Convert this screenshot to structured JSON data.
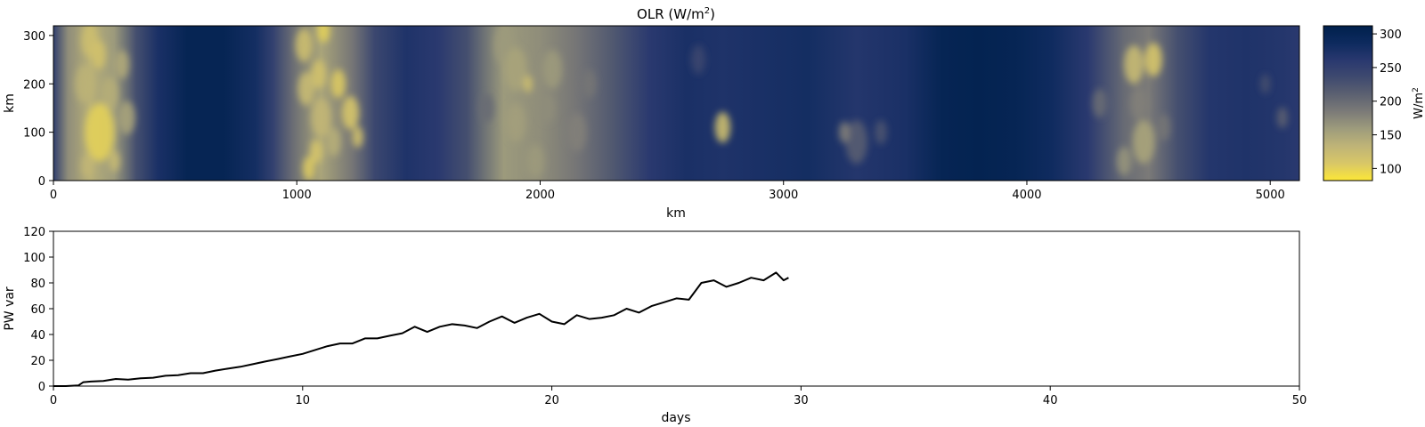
{
  "chart_data": [
    {
      "type": "heatmap",
      "title": "OLR (W/m²)",
      "title_main": "OLR (W/m",
      "title_sup": "2",
      "title_end": ")",
      "xlabel": "km",
      "ylabel": "km",
      "xlim": [
        0,
        5120
      ],
      "ylim": [
        0,
        320
      ],
      "xticks": [
        0,
        1000,
        2000,
        3000,
        4000,
        5000
      ],
      "yticks": [
        0,
        100,
        200,
        300
      ],
      "colormap": "cividis (reversed)",
      "colorbar": {
        "label_main": "W/m",
        "label_sup": "2",
        "ticks": [
          100,
          150,
          200,
          250,
          300
        ],
        "range": [
          82,
          312
        ],
        "colors": [
          "#fde737",
          "#d8c767",
          "#bfb477",
          "#9e9c7c",
          "#7c7b78",
          "#5c6171",
          "#3f4a6f",
          "#29386f",
          "#0d2a5e",
          "#00204c"
        ]
      },
      "background_value": 285,
      "bands": [
        {
          "x": 0,
          "v": 250
        },
        {
          "x": 60,
          "v": 170
        },
        {
          "x": 150,
          "v": 140
        },
        {
          "x": 250,
          "v": 160
        },
        {
          "x": 340,
          "v": 230
        },
        {
          "x": 430,
          "v": 275
        },
        {
          "x": 550,
          "v": 300
        },
        {
          "x": 700,
          "v": 300
        },
        {
          "x": 830,
          "v": 280
        },
        {
          "x": 900,
          "v": 250
        },
        {
          "x": 980,
          "v": 200
        },
        {
          "x": 1100,
          "v": 150
        },
        {
          "x": 1230,
          "v": 190
        },
        {
          "x": 1320,
          "v": 240
        },
        {
          "x": 1450,
          "v": 270
        },
        {
          "x": 1580,
          "v": 260
        },
        {
          "x": 1700,
          "v": 230
        },
        {
          "x": 1850,
          "v": 160
        },
        {
          "x": 2000,
          "v": 170
        },
        {
          "x": 2150,
          "v": 190
        },
        {
          "x": 2300,
          "v": 220
        },
        {
          "x": 2450,
          "v": 260
        },
        {
          "x": 2600,
          "v": 275
        },
        {
          "x": 2750,
          "v": 270
        },
        {
          "x": 2900,
          "v": 275
        },
        {
          "x": 3100,
          "v": 280
        },
        {
          "x": 3300,
          "v": 265
        },
        {
          "x": 3500,
          "v": 275
        },
        {
          "x": 3650,
          "v": 300
        },
        {
          "x": 3800,
          "v": 305
        },
        {
          "x": 3950,
          "v": 300
        },
        {
          "x": 4100,
          "v": 285
        },
        {
          "x": 4250,
          "v": 260
        },
        {
          "x": 4400,
          "v": 200
        },
        {
          "x": 4500,
          "v": 185
        },
        {
          "x": 4620,
          "v": 230
        },
        {
          "x": 4750,
          "v": 265
        },
        {
          "x": 4900,
          "v": 270
        },
        {
          "x": 5050,
          "v": 265
        },
        {
          "x": 5120,
          "v": 260
        }
      ],
      "cells": [
        {
          "x": 150,
          "y": 290,
          "r": 35,
          "v": 120
        },
        {
          "x": 185,
          "y": 260,
          "r": 30,
          "v": 115
        },
        {
          "x": 130,
          "y": 200,
          "r": 40,
          "v": 135
        },
        {
          "x": 230,
          "y": 180,
          "r": 35,
          "v": 140
        },
        {
          "x": 190,
          "y": 100,
          "r": 60,
          "v": 100
        },
        {
          "x": 140,
          "y": 30,
          "r": 25,
          "v": 130
        },
        {
          "x": 250,
          "y": 40,
          "r": 22,
          "v": 125
        },
        {
          "x": 300,
          "y": 130,
          "r": 35,
          "v": 150
        },
        {
          "x": 280,
          "y": 240,
          "r": 30,
          "v": 145
        },
        {
          "x": 1110,
          "y": 310,
          "r": 25,
          "v": 100
        },
        {
          "x": 1030,
          "y": 280,
          "r": 35,
          "v": 120
        },
        {
          "x": 1090,
          "y": 220,
          "r": 30,
          "v": 115
        },
        {
          "x": 1040,
          "y": 190,
          "r": 35,
          "v": 125
        },
        {
          "x": 1170,
          "y": 200,
          "r": 30,
          "v": 105
        },
        {
          "x": 1220,
          "y": 140,
          "r": 35,
          "v": 110
        },
        {
          "x": 1100,
          "y": 130,
          "r": 40,
          "v": 130
        },
        {
          "x": 1080,
          "y": 60,
          "r": 25,
          "v": 110
        },
        {
          "x": 1050,
          "y": 25,
          "r": 25,
          "v": 105
        },
        {
          "x": 1250,
          "y": 90,
          "r": 22,
          "v": 115
        },
        {
          "x": 1150,
          "y": 80,
          "r": 30,
          "v": 140
        },
        {
          "x": 1850,
          "y": 280,
          "r": 40,
          "v": 160
        },
        {
          "x": 1900,
          "y": 230,
          "r": 45,
          "v": 150
        },
        {
          "x": 2050,
          "y": 230,
          "r": 40,
          "v": 160
        },
        {
          "x": 1900,
          "y": 120,
          "r": 40,
          "v": 155
        },
        {
          "x": 1980,
          "y": 40,
          "r": 35,
          "v": 160
        },
        {
          "x": 2150,
          "y": 100,
          "r": 40,
          "v": 180
        },
        {
          "x": 1950,
          "y": 200,
          "r": 18,
          "v": 120
        },
        {
          "x": 2030,
          "y": 150,
          "r": 30,
          "v": 170
        },
        {
          "x": 2200,
          "y": 200,
          "r": 30,
          "v": 190
        },
        {
          "x": 1780,
          "y": 150,
          "r": 30,
          "v": 200
        },
        {
          "x": 2750,
          "y": 110,
          "r": 32,
          "v": 120
        },
        {
          "x": 2650,
          "y": 250,
          "r": 30,
          "v": 240
        },
        {
          "x": 3300,
          "y": 80,
          "r": 45,
          "v": 215
        },
        {
          "x": 3250,
          "y": 100,
          "r": 22,
          "v": 180
        },
        {
          "x": 3400,
          "y": 100,
          "r": 25,
          "v": 225
        },
        {
          "x": 4440,
          "y": 240,
          "r": 40,
          "v": 125
        },
        {
          "x": 4520,
          "y": 250,
          "r": 35,
          "v": 110
        },
        {
          "x": 4460,
          "y": 160,
          "r": 35,
          "v": 180
        },
        {
          "x": 4480,
          "y": 80,
          "r": 45,
          "v": 150
        },
        {
          "x": 4400,
          "y": 40,
          "r": 30,
          "v": 165
        },
        {
          "x": 4300,
          "y": 160,
          "r": 30,
          "v": 200
        },
        {
          "x": 4560,
          "y": 110,
          "r": 28,
          "v": 190
        },
        {
          "x": 5050,
          "y": 130,
          "r": 22,
          "v": 210
        },
        {
          "x": 4980,
          "y": 200,
          "r": 20,
          "v": 230
        }
      ]
    },
    {
      "type": "line",
      "title": "",
      "xlabel": "days",
      "ylabel": "PW var",
      "xlim": [
        0,
        50
      ],
      "ylim": [
        0,
        120
      ],
      "xticks": [
        0,
        10,
        20,
        30,
        40,
        50
      ],
      "yticks": [
        0,
        20,
        40,
        60,
        80,
        100,
        120
      ],
      "line_color": "#000000",
      "x": [
        0,
        0.5,
        1.0,
        1.2,
        1.5,
        2.0,
        2.5,
        3.0,
        3.5,
        4.0,
        4.5,
        5.0,
        5.5,
        6.0,
        6.5,
        7.0,
        7.5,
        8.0,
        8.5,
        9.0,
        9.5,
        10.0,
        10.5,
        11.0,
        11.5,
        12.0,
        12.5,
        13.0,
        13.5,
        14.0,
        14.5,
        15.0,
        15.5,
        16.0,
        16.5,
        17.0,
        17.5,
        18.0,
        18.5,
        19.0,
        19.5,
        20.0,
        20.5,
        21.0,
        21.5,
        22.0,
        22.5,
        23.0,
        23.5,
        24.0,
        24.5,
        25.0,
        25.5,
        26.0,
        26.5,
        27.0,
        27.5,
        28.0,
        28.5,
        29.0,
        29.3,
        29.5
      ],
      "y": [
        0,
        0,
        0.5,
        3,
        3.5,
        4,
        5.5,
        5,
        6,
        6.5,
        8,
        8.5,
        10,
        10,
        12,
        13.5,
        15,
        17,
        19,
        21,
        23,
        25,
        28,
        31,
        33,
        33,
        37,
        37,
        39,
        41,
        46,
        42,
        46,
        48,
        47,
        45,
        50,
        54,
        49,
        53,
        56,
        50,
        48,
        55,
        52,
        53,
        55,
        60,
        57,
        62,
        65,
        68,
        67,
        80,
        82,
        77,
        80,
        84,
        82,
        88,
        82,
        84
      ]
    }
  ]
}
